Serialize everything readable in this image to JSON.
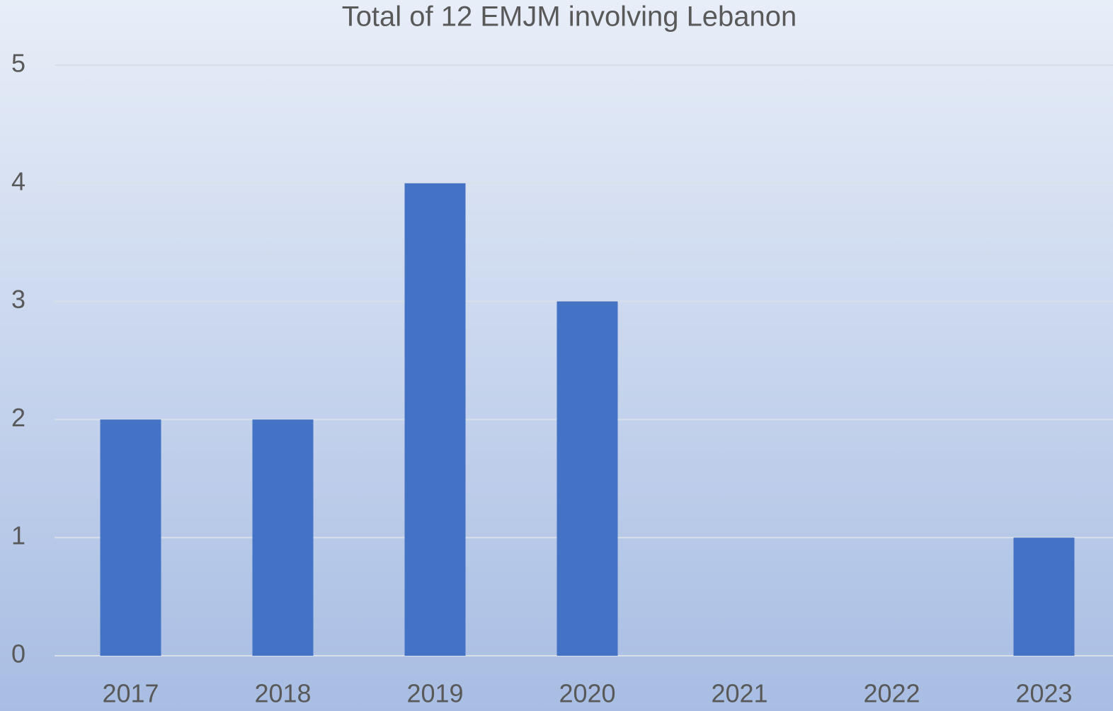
{
  "chart_data": {
    "type": "bar",
    "title": "Total of 12 EMJM involving Lebanon",
    "categories": [
      "2017",
      "2018",
      "2019",
      "2020",
      "2021",
      "2022",
      "2023"
    ],
    "values": [
      2,
      2,
      4,
      3,
      0,
      0,
      1
    ],
    "color": "#4472c4",
    "ylim": [
      0,
      5
    ],
    "yticks": [
      0,
      1,
      2,
      3,
      4,
      5
    ],
    "grid": true
  }
}
